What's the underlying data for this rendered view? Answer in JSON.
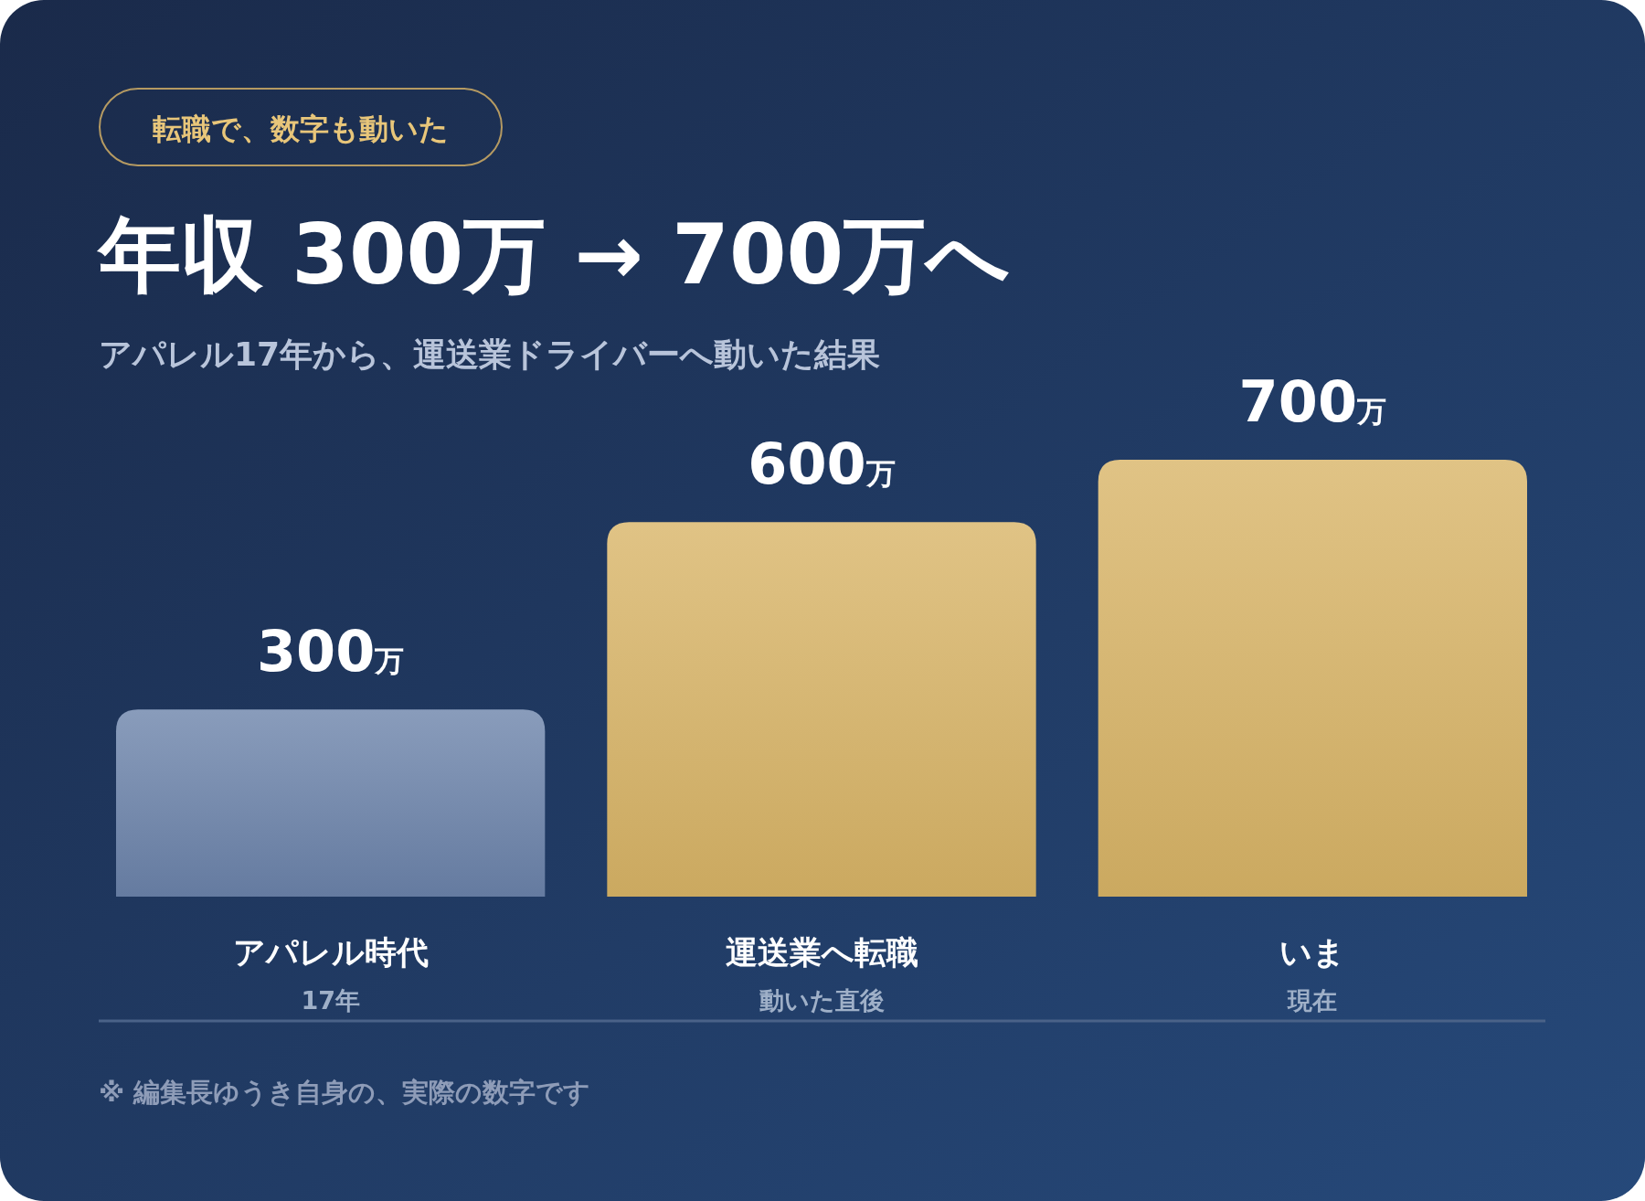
{
  "chart_data": {
    "type": "bar",
    "title": "年収 300万 → 700万へ",
    "subtitle": "アパレル17年から、運送業ドライバーへ動いた結果",
    "categories": [
      "アパレル時代",
      "運送業へ転職",
      "いま"
    ],
    "values": [
      300,
      600,
      700
    ],
    "colors": [
      "#6b83aa",
      "#d8b466",
      "#d8b466"
    ],
    "value_labels": [
      "300万",
      "600万",
      "700万"
    ],
    "annotations": [
      "転職で、数字も動いた",
      "※ 編集長ゆうき自身の、実際の数字です",
      "17年",
      "動いた直後",
      "現在"
    ],
    "grid": false
  }
}
